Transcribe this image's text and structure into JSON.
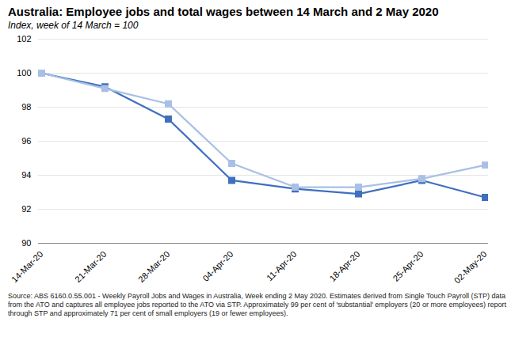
{
  "chart_data": {
    "type": "line",
    "title": "Australia: Employee jobs and total wages between 14 March and 2 May 2020",
    "subtitle": "Index, week of 14 March = 100",
    "caption": "Source: ABS 6160.0.55.001 - Weekly Payroll Jobs and Wages in Australia, Week ending 2 May 2020.  Estimates derived from Single Touch Payroll (STP) data from the ATO and captures all employee jobs reported to the ATO via STP.  Approximately 99 per cent of 'substantial' employers (20 or more employees) report through STP and approximately 71 per cent of small employers (19 or fewer employees).",
    "categories": [
      "14-Mar-20",
      "21-Mar-20",
      "28-Mar-20",
      "04-Apr-20",
      "11-Apr-20",
      "18-Apr-20",
      "25-Apr-20",
      "02-May-20"
    ],
    "series": [
      {
        "color": "#3f6fbf",
        "marker": "square",
        "line_style": "solid",
        "values": [
          100,
          99.2,
          97.3,
          93.7,
          93.2,
          92.9,
          93.7,
          92.7
        ]
      },
      {
        "color": "#a9c0e4",
        "marker": "square",
        "line_style": "solid",
        "values": [
          100,
          99.1,
          98.2,
          94.7,
          93.3,
          93.3,
          93.8,
          94.6
        ]
      }
    ],
    "ylim": [
      90,
      102
    ],
    "yticks": [
      90,
      92,
      94,
      96,
      98,
      100,
      102
    ],
    "grid": true
  }
}
